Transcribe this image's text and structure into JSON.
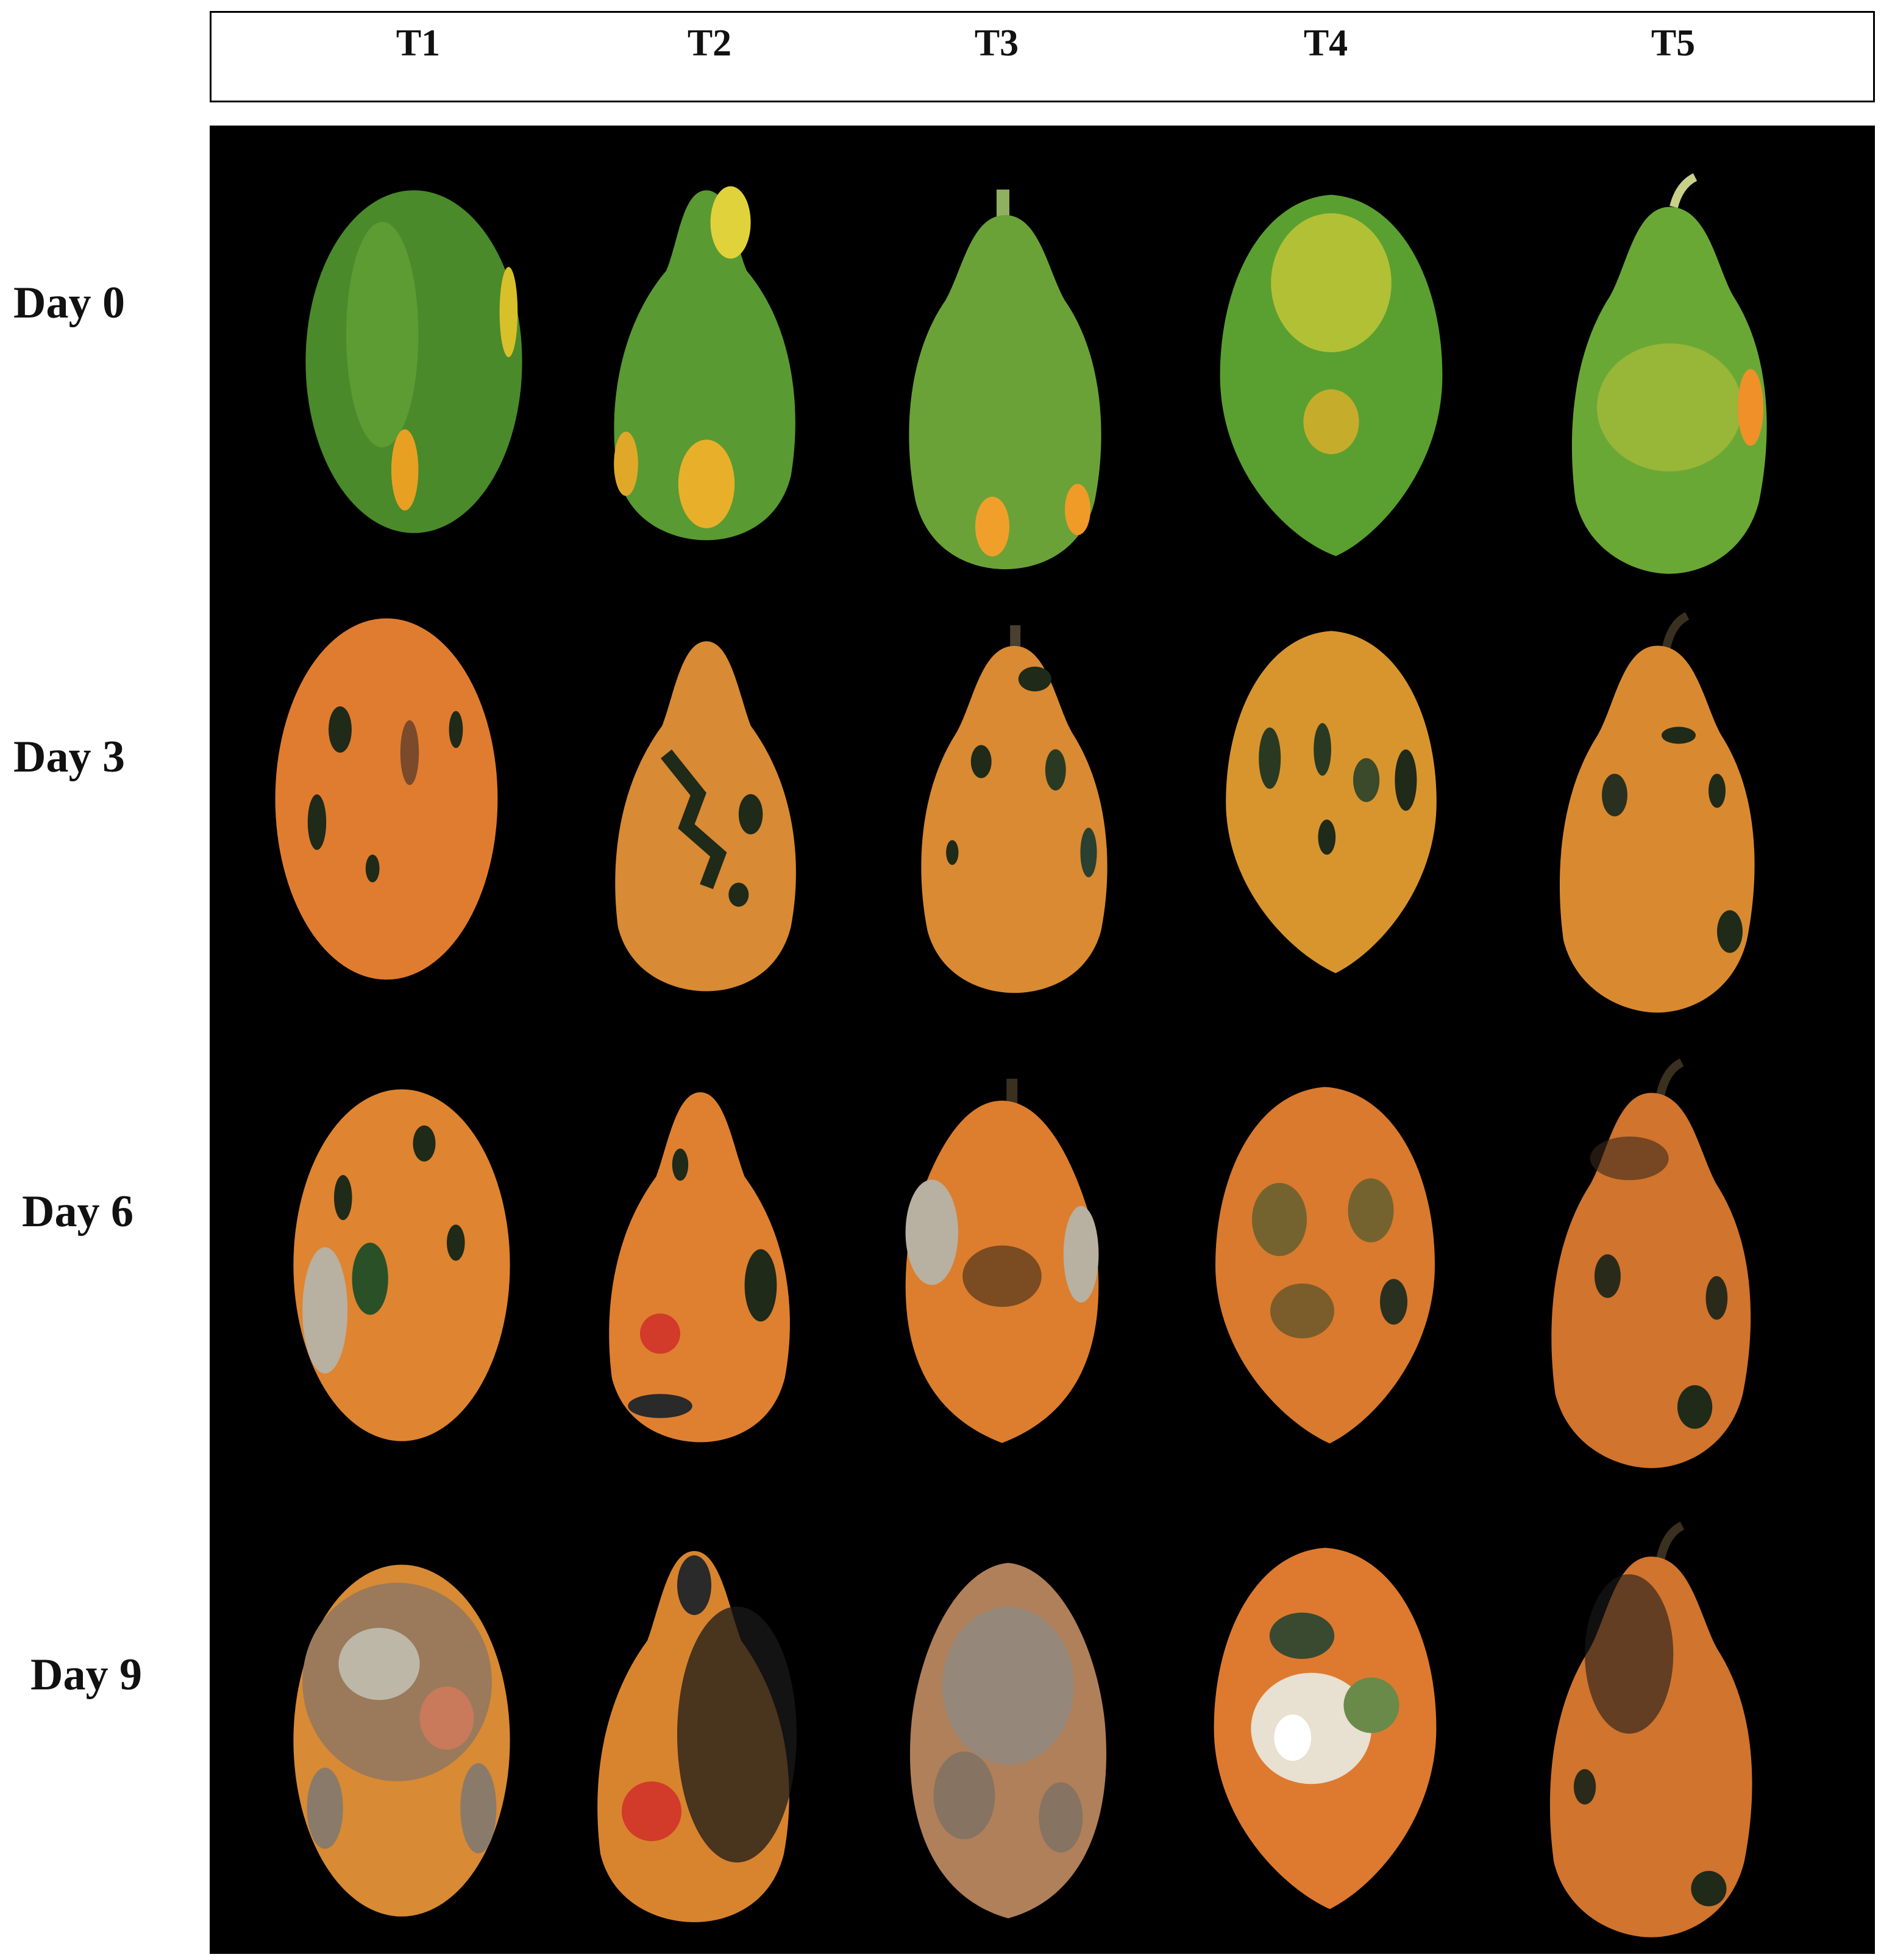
{
  "columns": [
    {
      "label": "T1"
    },
    {
      "label": "T2"
    },
    {
      "label": "T3"
    },
    {
      "label": "T4"
    },
    {
      "label": "T5"
    }
  ],
  "rows": [
    {
      "label": "Day 0",
      "stage": "unripe-green"
    },
    {
      "label": "Day 3",
      "stage": "ripe-orange-dark-spots"
    },
    {
      "label": "Day 6",
      "stage": "ripe-with-lesions"
    },
    {
      "label": "Day 9",
      "stage": "decayed-with-mold"
    }
  ],
  "colors": {
    "background_panel": "#000000",
    "green_skin": "#4f8f2a",
    "yellow_patch": "#e6c72a",
    "orange_skin": "#e07a2e",
    "dark_spot": "#1f2a18",
    "red_lesion": "#d23a2a",
    "mold_gray": "#bdb7a8"
  }
}
